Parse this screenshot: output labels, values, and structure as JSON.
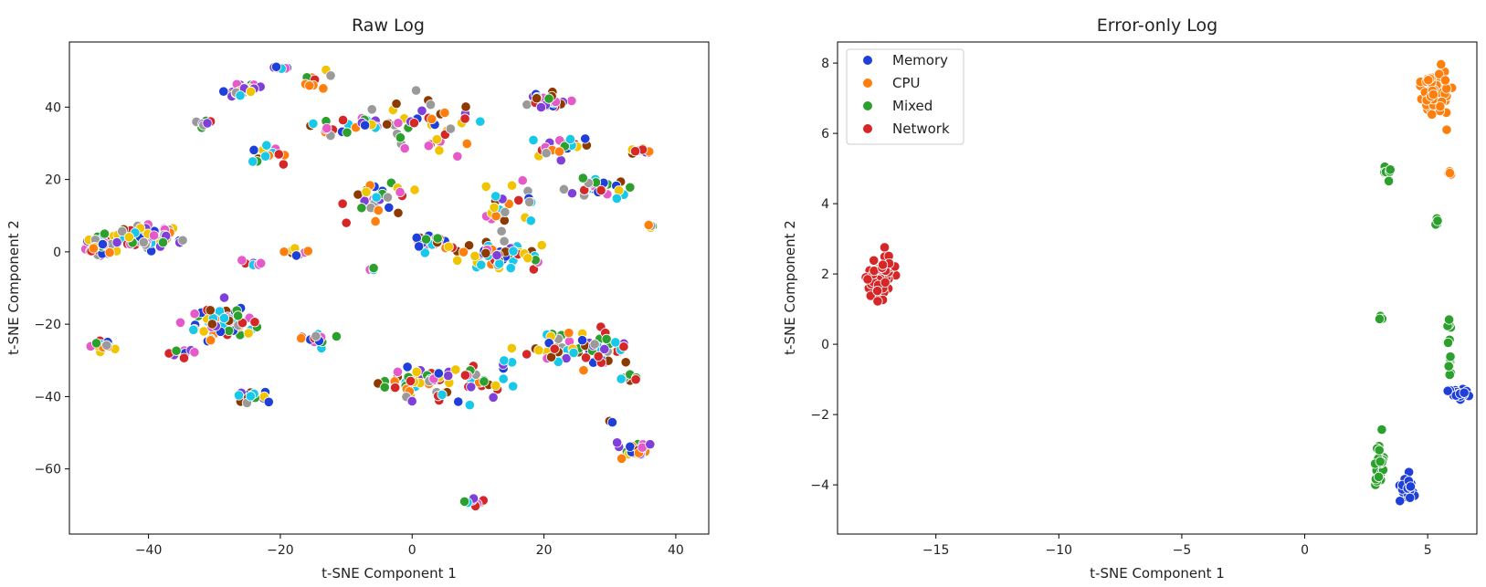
{
  "palette": {
    "blue": "#1f3fd9",
    "orange": "#ff7f0e",
    "green": "#2ca02c",
    "red": "#d62728",
    "purple": "#7f3fd9",
    "brown": "#8c3a00",
    "pink": "#e55ac8",
    "gray": "#9a9a9a",
    "yellow": "#f0c400",
    "cyan": "#17c8e8"
  },
  "chart_data": [
    {
      "type": "scatter",
      "title": "Raw Log",
      "xlabel": "t-SNE Component 1",
      "ylabel": "t-SNE Component 2",
      "xlim": [
        -52,
        45
      ],
      "ylim": [
        -78,
        58
      ],
      "xticks": [
        -40,
        -20,
        0,
        20,
        40
      ],
      "yticks": [
        -60,
        -40,
        -20,
        0,
        20,
        40
      ],
      "tick_labels_x": [
        "−40",
        "−20",
        "0",
        "20",
        "40"
      ],
      "tick_labels_y": [
        "−60",
        "−40",
        "−20",
        "0",
        "20",
        "40"
      ],
      "grid": false,
      "legend": null,
      "clusters": [
        {
          "cx": -47,
          "cy": 2,
          "rx": 2.5,
          "ry": 3,
          "n": 60
        },
        {
          "cx": -40,
          "cy": 4,
          "rx": 4,
          "ry": 3,
          "n": 70
        },
        {
          "cx": -28,
          "cy": -20,
          "rx": 4.5,
          "ry": 3.5,
          "n": 70
        },
        {
          "cx": -47,
          "cy": -26,
          "rx": 1.5,
          "ry": 1.5,
          "n": 15
        },
        {
          "cx": -24,
          "cy": -40,
          "rx": 2,
          "ry": 1.5,
          "n": 18
        },
        {
          "cx": -24,
          "cy": -3,
          "rx": 1,
          "ry": 1,
          "n": 6
        },
        {
          "cx": -18,
          "cy": 0,
          "rx": 1.5,
          "ry": 1,
          "n": 10
        },
        {
          "cx": -22,
          "cy": 27,
          "rx": 2,
          "ry": 2,
          "n": 15
        },
        {
          "cx": -26,
          "cy": 45,
          "rx": 3,
          "ry": 2,
          "n": 20
        },
        {
          "cx": -31,
          "cy": 36,
          "rx": 1.5,
          "ry": 1.5,
          "n": 8
        },
        {
          "cx": -20,
          "cy": 51,
          "rx": 1.5,
          "ry": 0.8,
          "n": 8
        },
        {
          "cx": -15,
          "cy": 47,
          "rx": 3,
          "ry": 2,
          "n": 10
        },
        {
          "cx": -12,
          "cy": 33,
          "rx": 4,
          "ry": 3,
          "n": 14
        },
        {
          "cx": -8,
          "cy": 36,
          "rx": 3,
          "ry": 2,
          "n": 12
        },
        {
          "cx": -5,
          "cy": 15,
          "rx": 4,
          "ry": 5,
          "n": 30
        },
        {
          "cx": 3,
          "cy": 35,
          "rx": 7,
          "ry": 7,
          "n": 40
        },
        {
          "cx": 3,
          "cy": 2,
          "rx": 2.5,
          "ry": 3,
          "n": 25
        },
        {
          "cx": 13,
          "cy": -1,
          "rx": 5,
          "ry": 3.5,
          "n": 55
        },
        {
          "cx": 20,
          "cy": 42,
          "rx": 3,
          "ry": 2.5,
          "n": 30
        },
        {
          "cx": 23,
          "cy": 30,
          "rx": 4,
          "ry": 3,
          "n": 20
        },
        {
          "cx": 28,
          "cy": 18,
          "rx": 4,
          "ry": 2,
          "n": 35
        },
        {
          "cx": 35,
          "cy": 28,
          "rx": 1.5,
          "ry": 1,
          "n": 10
        },
        {
          "cx": 15,
          "cy": 12,
          "rx": 5,
          "ry": 6,
          "n": 25
        },
        {
          "cx": 0,
          "cy": -37,
          "rx": 5,
          "ry": 4,
          "n": 45
        },
        {
          "cx": 10,
          "cy": -35,
          "rx": 5,
          "ry": 6,
          "n": 30
        },
        {
          "cx": 25,
          "cy": -27,
          "rx": 8,
          "ry": 5,
          "n": 70
        },
        {
          "cx": 34,
          "cy": -55,
          "rx": 2.5,
          "ry": 2,
          "n": 25
        },
        {
          "cx": 9,
          "cy": -69,
          "rx": 1.5,
          "ry": 1,
          "n": 12
        },
        {
          "cx": -14,
          "cy": -24,
          "rx": 3,
          "ry": 2,
          "n": 12
        },
        {
          "cx": -35,
          "cy": -28,
          "rx": 2,
          "ry": 2,
          "n": 8
        },
        {
          "cx": 36,
          "cy": 7,
          "rx": 0.8,
          "ry": 0.8,
          "n": 4
        },
        {
          "cx": -6,
          "cy": -5,
          "rx": 0.8,
          "ry": 0.5,
          "n": 3
        },
        {
          "cx": 33,
          "cy": -35,
          "rx": 2,
          "ry": 1,
          "n": 6
        },
        {
          "cx": 30,
          "cy": -47,
          "rx": 0.5,
          "ry": 0.5,
          "n": 2
        }
      ]
    },
    {
      "type": "scatter",
      "title": "Error-only Log",
      "xlabel": "t-SNE Component 1",
      "ylabel": "t-SNE Component 2",
      "xlim": [
        -19,
        7
      ],
      "ylim": [
        -5.4,
        8.6
      ],
      "xticks": [
        -15,
        -10,
        -5,
        0,
        5
      ],
      "yticks": [
        -4,
        -2,
        0,
        2,
        4,
        6,
        8
      ],
      "tick_labels_x": [
        "−15",
        "−10",
        "−5",
        "0",
        "5"
      ],
      "tick_labels_y": [
        "−4",
        "−2",
        "0",
        "2",
        "4",
        "6",
        "8"
      ],
      "grid": false,
      "legend": {
        "position": "top-left",
        "entries": [
          "Memory",
          "CPU",
          "Mixed",
          "Network"
        ]
      },
      "series": [
        {
          "name": "Memory",
          "color": "#1f3fd9",
          "clusters": [
            {
              "cx": 4.2,
              "cy": -4.2,
              "rx": 0.3,
              "ry": 0.6,
              "n": 22
            },
            {
              "cx": 6.2,
              "cy": -1.4,
              "rx": 0.35,
              "ry": 0.15,
              "n": 18
            }
          ]
        },
        {
          "name": "CPU",
          "color": "#ff7f0e",
          "clusters": [
            {
              "cx": 5.3,
              "cy": 7.2,
              "rx": 0.5,
              "ry": 0.6,
              "n": 70
            },
            {
              "cx": 5.9,
              "cy": 4.9,
              "rx": 0.05,
              "ry": 0.1,
              "n": 4
            }
          ]
        },
        {
          "name": "Mixed",
          "color": "#2ca02c",
          "clusters": [
            {
              "cx": 3.0,
              "cy": -3.5,
              "rx": 0.2,
              "ry": 0.6,
              "n": 30
            },
            {
              "cx": 3.4,
              "cy": 5.0,
              "rx": 0.2,
              "ry": 0.25,
              "n": 6
            },
            {
              "cx": 5.4,
              "cy": 3.5,
              "rx": 0.1,
              "ry": 0.25,
              "n": 5
            },
            {
              "cx": 3.0,
              "cy": 0.7,
              "rx": 0.2,
              "ry": 0.2,
              "n": 4
            },
            {
              "cx": 5.9,
              "cy": 0.5,
              "rx": 0.08,
              "ry": 0.3,
              "n": 5
            },
            {
              "cx": 5.9,
              "cy": -0.6,
              "rx": 0.1,
              "ry": 0.35,
              "n": 8
            }
          ]
        },
        {
          "name": "Network",
          "color": "#d62728",
          "clusters": [
            {
              "cx": -17.2,
              "cy": 2.0,
              "rx": 0.5,
              "ry": 0.55,
              "n": 60
            }
          ]
        }
      ]
    }
  ]
}
